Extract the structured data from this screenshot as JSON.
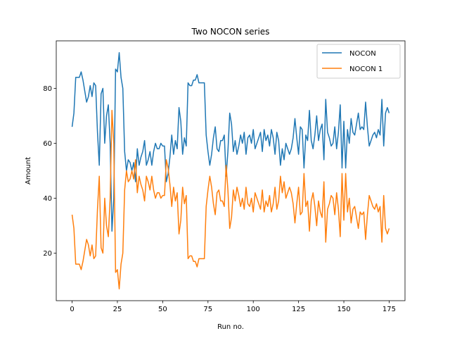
{
  "chart_data": {
    "type": "line",
    "title": "Two NOCON series",
    "xlabel": "Run no.",
    "ylabel": "Amount",
    "xlim": [
      -8.75,
      183.75
    ],
    "ylim": [
      2.7,
      97.3
    ],
    "xticks": [
      0,
      25,
      50,
      75,
      100,
      125,
      150,
      175
    ],
    "yticks": [
      20,
      40,
      60,
      80
    ],
    "legend": "upper-right",
    "grid": false,
    "series": [
      {
        "name": "NOCON",
        "color": "#1f77b4",
        "values": [
          66,
          71,
          84,
          84,
          84,
          86,
          83,
          79,
          75,
          77,
          81,
          77,
          82,
          81,
          64,
          52,
          78,
          80,
          60,
          70,
          74,
          60,
          28,
          40,
          87,
          86,
          93,
          84,
          80,
          57,
          50,
          54,
          53,
          50,
          53,
          46,
          58,
          52,
          55,
          57,
          61,
          52,
          54,
          57,
          52,
          57,
          60,
          58,
          58,
          60,
          59,
          59,
          46,
          49,
          55,
          63,
          56,
          61,
          58,
          73,
          68,
          56,
          62,
          59,
          82,
          81,
          81,
          83,
          83,
          85,
          82,
          82,
          82,
          82,
          63,
          57,
          52,
          56,
          62,
          66,
          58,
          57,
          61,
          61,
          63,
          48,
          57,
          71,
          67,
          57,
          61,
          56,
          59,
          63,
          60,
          64,
          56,
          62,
          63,
          60,
          65,
          58,
          60,
          62,
          64,
          57,
          65,
          61,
          63,
          59,
          65,
          62,
          56,
          64,
          61,
          52,
          58,
          54,
          60,
          58,
          56,
          58,
          62,
          69,
          62,
          56,
          66,
          65,
          51,
          63,
          61,
          72,
          61,
          58,
          63,
          70,
          61,
          65,
          67,
          54,
          76,
          64,
          62,
          59,
          60,
          66,
          58,
          64,
          74,
          51,
          68,
          51,
          65,
          60,
          69,
          64,
          63,
          67,
          71,
          65,
          66,
          65,
          75,
          66,
          59,
          61,
          63,
          64,
          62,
          65,
          63,
          76,
          59,
          71,
          73,
          71
        ]
      },
      {
        "name": "NOCON 1",
        "color": "#ff7f0e",
        "values": [
          34,
          29,
          16,
          16,
          16,
          14,
          17,
          21,
          25,
          23,
          19,
          23,
          18,
          19,
          36,
          48,
          22,
          20,
          40,
          30,
          26,
          40,
          72,
          60,
          13,
          14,
          7,
          16,
          20,
          43,
          50,
          46,
          47,
          50,
          47,
          54,
          42,
          48,
          45,
          43,
          39,
          48,
          46,
          43,
          48,
          43,
          40,
          42,
          42,
          40,
          41,
          41,
          54,
          51,
          45,
          37,
          44,
          39,
          42,
          27,
          32,
          44,
          38,
          41,
          18,
          19,
          19,
          17,
          17,
          15,
          18,
          18,
          18,
          18,
          37,
          43,
          48,
          44,
          38,
          34,
          42,
          43,
          39,
          39,
          37,
          52,
          43,
          29,
          33,
          43,
          39,
          44,
          41,
          37,
          40,
          36,
          44,
          38,
          37,
          40,
          35,
          42,
          40,
          38,
          36,
          43,
          35,
          39,
          37,
          41,
          35,
          38,
          44,
          36,
          39,
          48,
          42,
          46,
          40,
          42,
          44,
          42,
          38,
          31,
          38,
          44,
          34,
          35,
          49,
          37,
          39,
          28,
          39,
          42,
          37,
          30,
          39,
          35,
          33,
          46,
          24,
          36,
          38,
          41,
          40,
          34,
          42,
          36,
          26,
          49,
          32,
          49,
          35,
          40,
          31,
          36,
          37,
          33,
          29,
          35,
          34,
          35,
          25,
          34,
          41,
          39,
          37,
          36,
          38,
          35,
          37,
          24,
          41,
          29,
          27,
          29
        ]
      }
    ]
  }
}
